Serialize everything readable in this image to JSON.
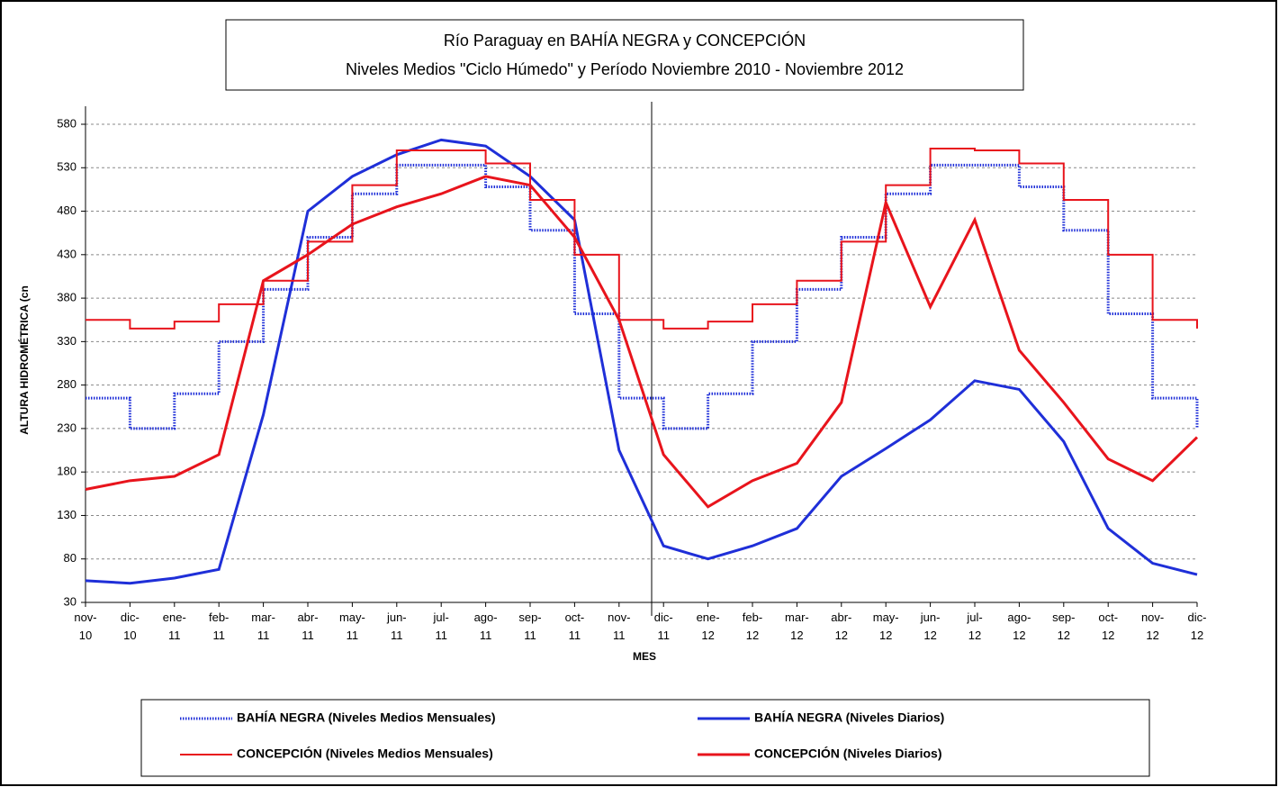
{
  "chart_data": {
    "type": "line",
    "title": [
      "Río Paraguay en BAHÍA NEGRA y CONCEPCIÓN",
      "Niveles Medios \"Ciclo Húmedo\" y Período Noviembre 2010 - Noviembre 2012"
    ],
    "x_label": "MES",
    "y_label": "ALTURA HIDROMÉTRICA (cn",
    "categories": [
      "nov-10",
      "dic-10",
      "ene-11",
      "feb-11",
      "mar-11",
      "abr-11",
      "may-11",
      "jun-11",
      "jul-11",
      "ago-11",
      "sep-11",
      "oct-11",
      "nov-11",
      "dic-11",
      "ene-12",
      "feb-12",
      "mar-12",
      "abr-12",
      "may-12",
      "jun-12",
      "jul-12",
      "ago-12",
      "sep-12",
      "oct-12",
      "nov-12",
      "dic-12"
    ],
    "ylim": [
      30,
      580
    ],
    "yticks": [
      30,
      80,
      130,
      180,
      230,
      280,
      330,
      380,
      430,
      480,
      530,
      580
    ],
    "grid": true,
    "series": [
      {
        "name": "BAHÍA NEGRA (Niveles Medios Mensuales)",
        "color": "#1f2fd8",
        "line_style": "dotted",
        "step": true,
        "values": [
          265,
          230,
          270,
          330,
          390,
          450,
          500,
          533,
          533,
          508,
          458,
          362,
          265,
          230,
          270,
          330,
          390,
          450,
          500,
          533,
          533,
          508,
          458,
          362,
          265,
          230
        ]
      },
      {
        "name": "BAHÍA NEGRA (Niveles Diarios)",
        "color": "#1f2fd8",
        "line_style": "solid",
        "step": false,
        "values": [
          55,
          52,
          58,
          68,
          246,
          480,
          520,
          545,
          562,
          555,
          520,
          470,
          205,
          95,
          80,
          95,
          115,
          175,
          207,
          240,
          285,
          275,
          215,
          115,
          75,
          62
        ]
      },
      {
        "name": "CONCEPCIÓN (Niveles Medios Mensuales)",
        "color": "#e8141c",
        "line_style": "solid",
        "step": true,
        "values": [
          355,
          345,
          353,
          373,
          400,
          445,
          510,
          550,
          550,
          535,
          493,
          430,
          355,
          345,
          353,
          373,
          400,
          445,
          510,
          552,
          550,
          535,
          493,
          430,
          355,
          345
        ]
      },
      {
        "name": "CONCEPCIÓN (Niveles Diarios)",
        "color": "#e8141c",
        "line_style": "solid",
        "step": false,
        "values": [
          160,
          170,
          175,
          200,
          400,
          430,
          465,
          485,
          500,
          520,
          510,
          450,
          355,
          200,
          140,
          170,
          190,
          260,
          490,
          370,
          470,
          320,
          260,
          195,
          170,
          220
        ]
      }
    ]
  }
}
